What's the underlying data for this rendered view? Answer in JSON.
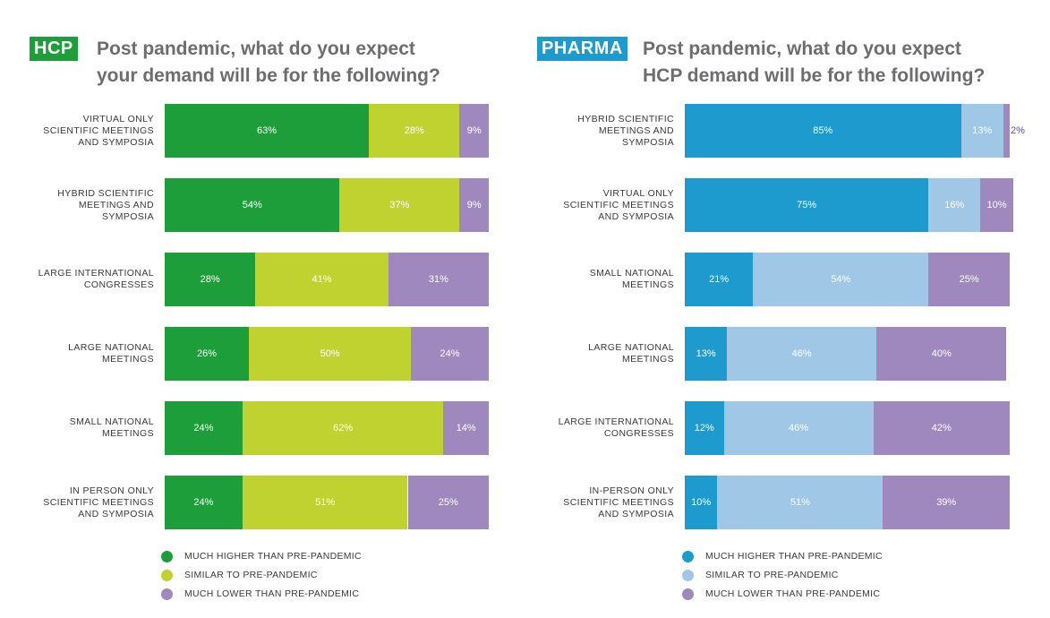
{
  "chart_data": [
    {
      "type": "bar",
      "orientation": "horizontal-stacked-100",
      "badge": "HCP",
      "badge_color": "#1e9e3a",
      "title_line1": "Post pandemic, what do you expect",
      "title_line2": "your demand will be for the following?",
      "categories": [
        "VIRTUAL ONLY\nSCIENTIFIC MEETINGS\nAND SYMPOSIA",
        "HYBRID SCIENTIFIC\nMEETINGS AND\nSYMPOSIA",
        "LARGE INTERNATIONAL\nCONGRESSES",
        "LARGE NATIONAL\nMEETINGS",
        "SMALL NATIONAL\nMEETINGS",
        "IN PERSON ONLY\nSCIENTIFIC MEETINGS\nAND SYMPOSIA"
      ],
      "series": [
        {
          "name": "MUCH HIGHER THAN PRE-PANDEMIC",
          "color": "#1e9e3a",
          "values": [
            63,
            54,
            28,
            26,
            24,
            24
          ]
        },
        {
          "name": "SIMILAR TO PRE-PANDEMIC",
          "color": "#bfd230",
          "values": [
            28,
            37,
            41,
            50,
            62,
            51
          ]
        },
        {
          "name": "MUCH LOWER THAN PRE-PANDEMIC",
          "color": "#9e88bd",
          "values": [
            9,
            9,
            31,
            24,
            14,
            25
          ]
        }
      ],
      "unit": "%",
      "xlim": [
        0,
        100
      ],
      "legend_position": "bottom"
    },
    {
      "type": "bar",
      "orientation": "horizontal-stacked-100",
      "badge": "PHARMA",
      "badge_color": "#1e9bce",
      "title_line1": "Post pandemic, what do you expect",
      "title_line2": "HCP demand will be for the following?",
      "categories": [
        "HYBRID SCIENTIFIC\nMEETINGS AND\nSYMPOSIA",
        "VIRTUAL ONLY\nSCIENTIFIC MEETINGS\nAND SYMPOSIA",
        "SMALL NATIONAL\nMEETINGS",
        "LARGE NATIONAL\nMEETINGS",
        "LARGE INTERNATIONAL\nCONGRESSES",
        "IN-PERSON ONLY\nSCIENTIFIC MEETINGS\nAND SYMPOSIA"
      ],
      "series": [
        {
          "name": "MUCH HIGHER THAN PRE-PANDEMIC",
          "color": "#1e9bce",
          "values": [
            85,
            75,
            21,
            13,
            12,
            10
          ]
        },
        {
          "name": "SIMILAR TO PRE-PANDEMIC",
          "color": "#a0c8e6",
          "values": [
            13,
            16,
            54,
            46,
            46,
            51
          ]
        },
        {
          "name": "MUCH LOWER THAN PRE-PANDEMIC",
          "color": "#9e88bd",
          "values": [
            2,
            10,
            25,
            40,
            42,
            39
          ]
        }
      ],
      "unit": "%",
      "xlim": [
        0,
        100
      ],
      "outside_label_color": "#6a4a96",
      "legend_position": "bottom"
    }
  ]
}
